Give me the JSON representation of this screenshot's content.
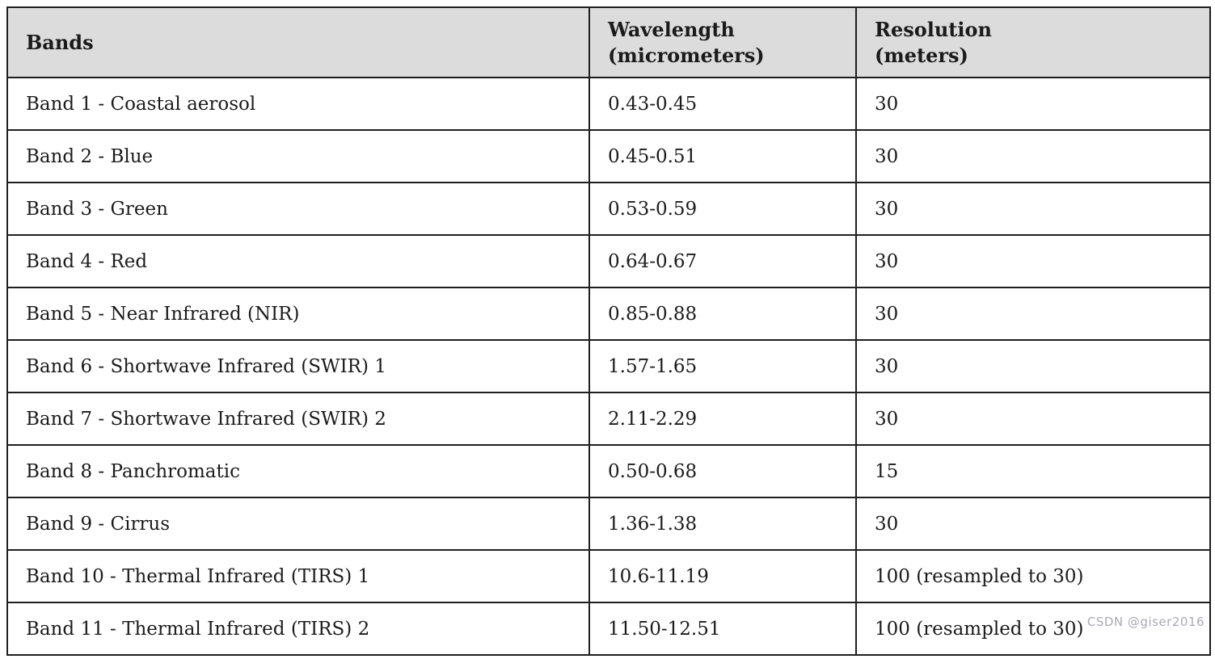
{
  "table": {
    "headers": [
      {
        "label": "Bands",
        "sublabel": ""
      },
      {
        "label": "Wavelength",
        "sublabel": "(micrometers)"
      },
      {
        "label": "Resolution",
        "sublabel": "(meters)"
      }
    ],
    "rows": [
      {
        "band": "Band 1 - Coastal aerosol",
        "wavelength": "0.43-0.45",
        "resolution": "30"
      },
      {
        "band": "Band 2 - Blue",
        "wavelength": "0.45-0.51",
        "resolution": "30"
      },
      {
        "band": "Band 3 - Green",
        "wavelength": "0.53-0.59",
        "resolution": "30"
      },
      {
        "band": "Band 4 - Red",
        "wavelength": "0.64-0.67",
        "resolution": "30"
      },
      {
        "band": "Band 5 - Near Infrared (NIR)",
        "wavelength": "0.85-0.88",
        "resolution": "30"
      },
      {
        "band": "Band 6 - Shortwave Infrared (SWIR) 1",
        "wavelength": "1.57-1.65",
        "resolution": "30"
      },
      {
        "band": "Band 7 - Shortwave Infrared (SWIR) 2",
        "wavelength": "2.11-2.29",
        "resolution": "30"
      },
      {
        "band": "Band 8 - Panchromatic",
        "wavelength": "0.50-0.68",
        "resolution": "15"
      },
      {
        "band": "Band 9 - Cirrus",
        "wavelength": "1.36-1.38",
        "resolution": "30"
      },
      {
        "band": "Band 10 - Thermal Infrared (TIRS) 1",
        "wavelength": "10.6-11.19",
        "resolution": "100 (resampled to 30)"
      },
      {
        "band": "Band 11 - Thermal Infrared (TIRS) 2",
        "wavelength": "11.50-12.51",
        "resolution": "100 (resampled to 30)"
      }
    ]
  },
  "watermark": "CSDN @giser2016",
  "colors": {
    "header_background": "#dcdcdc",
    "border": "#1f1f1f",
    "text": "#1b1b1b",
    "watermark": "#a9a9b2"
  }
}
